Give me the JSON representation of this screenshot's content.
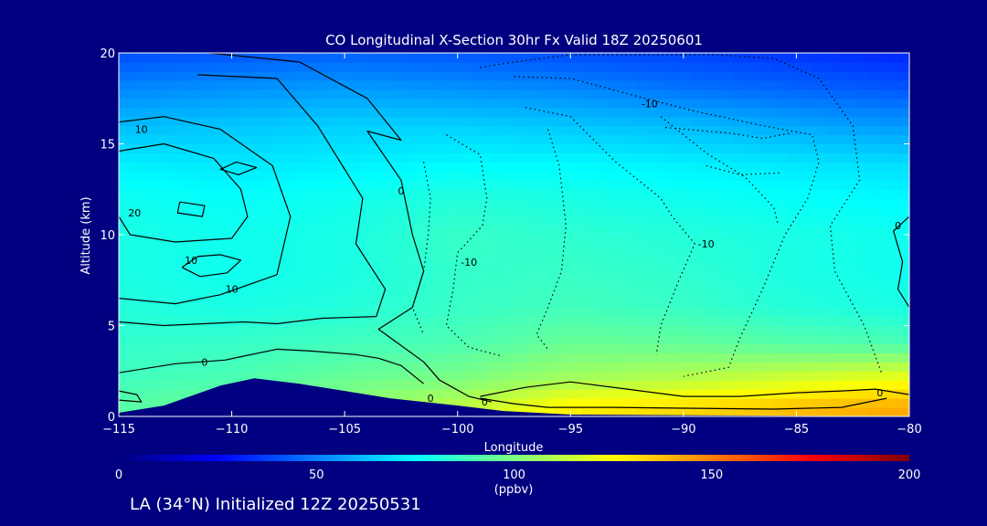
{
  "chart_data": {
    "type": "heatmap",
    "title": "CO Longitudinal X-Section 30hr  Fx Valid 18Z 20250601",
    "xlabel": "Longitude",
    "ylabel": "Altitude (km)",
    "xlim": [
      -115,
      -80
    ],
    "ylim": [
      0,
      20
    ],
    "x_ticks": [
      "−115",
      "−110",
      "−105",
      "−100",
      "−95",
      "−90",
      "−85",
      "−80"
    ],
    "x_tick_values": [
      -115,
      -110,
      -105,
      -100,
      -95,
      -90,
      -85,
      -80
    ],
    "y_ticks": [
      "0",
      "5",
      "10",
      "15",
      "20"
    ],
    "y_tick_values": [
      0,
      5,
      10,
      15,
      20
    ],
    "colorbar": {
      "label": "(ppbv)",
      "ticks": [
        "0",
        "50",
        "100",
        "150",
        "200"
      ],
      "tick_values": [
        0,
        50,
        100,
        150,
        200
      ],
      "range": [
        0,
        200
      ]
    },
    "grid_lon": [
      -115,
      -110,
      -105,
      -100,
      -95,
      -90,
      -85,
      -80
    ],
    "grid_alt": [
      0.5,
      2,
      4,
      6,
      8,
      10,
      12,
      14,
      16,
      18,
      20
    ],
    "values": [
      [
        92,
        98,
        104,
        112,
        128,
        132,
        138,
        142
      ],
      [
        88,
        90,
        96,
        100,
        108,
        112,
        118,
        124
      ],
      [
        85,
        86,
        88,
        90,
        96,
        95,
        92,
        90
      ],
      [
        82,
        80,
        82,
        86,
        88,
        86,
        82,
        80
      ],
      [
        80,
        78,
        80,
        85,
        86,
        84,
        80,
        78
      ],
      [
        80,
        78,
        80,
        86,
        84,
        82,
        80,
        78
      ],
      [
        78,
        76,
        78,
        82,
        80,
        78,
        76,
        74
      ],
      [
        72,
        70,
        72,
        74,
        74,
        72,
        70,
        68
      ],
      [
        62,
        64,
        66,
        66,
        64,
        62,
        58,
        55
      ],
      [
        52,
        54,
        56,
        54,
        52,
        48,
        45,
        42
      ],
      [
        40,
        42,
        44,
        42,
        40,
        38,
        35,
        32
      ]
    ],
    "terrain": {
      "lon": [
        -115,
        -113,
        -110.5,
        -109,
        -107,
        -103,
        -100,
        -98,
        -95,
        -80
      ],
      "alt": [
        0.2,
        0.6,
        1.7,
        2.1,
        1.8,
        1.0,
        0.6,
        0.3,
        0.1,
        0.0
      ]
    },
    "contour_labels": [
      {
        "text": "10",
        "lon": -114,
        "alt": 15.8
      },
      {
        "text": "20",
        "lon": -114.3,
        "alt": 11.2
      },
      {
        "text": "10",
        "lon": -111.8,
        "alt": 8.6
      },
      {
        "text": "10",
        "lon": -110,
        "alt": 7.0
      },
      {
        "text": "0",
        "lon": -111.2,
        "alt": 3.0
      },
      {
        "text": "0",
        "lon": -102.5,
        "alt": 12.4
      },
      {
        "text": "-10",
        "lon": -99.5,
        "alt": 8.5
      },
      {
        "text": "-10",
        "lon": -91.5,
        "alt": 17.2
      },
      {
        "text": "-10",
        "lon": -89,
        "alt": 9.5
      },
      {
        "text": "0",
        "lon": -80.5,
        "alt": 10.5
      },
      {
        "text": "0",
        "lon": -101.2,
        "alt": 1.0
      },
      {
        "text": "0",
        "lon": -98.8,
        "alt": 0.8
      },
      {
        "text": "0",
        "lon": -81.3,
        "alt": 1.3
      }
    ],
    "contour_lines": [
      {
        "style": "solid",
        "pts": [
          [
            -111,
            20
          ],
          [
            -107,
            19.5
          ],
          [
            -104,
            17.5
          ],
          [
            -102.5,
            15.2
          ],
          [
            -104,
            15.7
          ],
          [
            -102.5,
            13
          ],
          [
            -102,
            10
          ],
          [
            -101.5,
            8
          ],
          [
            -102,
            6
          ],
          [
            -103.5,
            4.8
          ],
          [
            -101.5,
            3
          ],
          [
            -100.8,
            2
          ],
          [
            -99.5,
            1.1
          ],
          [
            -98.5,
            0.8
          ]
        ]
      },
      {
        "style": "solid",
        "pts": [
          [
            -111.5,
            18.8
          ],
          [
            -108,
            18.6
          ],
          [
            -106.2,
            16
          ],
          [
            -104.2,
            12
          ],
          [
            -104.5,
            9.5
          ],
          [
            -103.2,
            7
          ],
          [
            -103.6,
            5.5
          ],
          [
            -106,
            5.4
          ],
          [
            -108,
            5.1
          ],
          [
            -109.5,
            5.2
          ],
          [
            -113,
            5
          ],
          [
            -115,
            5.2
          ]
        ]
      },
      {
        "style": "solid",
        "pts": [
          [
            -115,
            16.2
          ],
          [
            -113,
            16.5
          ],
          [
            -110.5,
            15.8
          ],
          [
            -108.2,
            13.8
          ],
          [
            -107.4,
            11
          ],
          [
            -108,
            7.8
          ],
          [
            -110.5,
            6.7
          ],
          [
            -112.5,
            6.2
          ],
          [
            -115,
            6.5
          ]
        ]
      },
      {
        "style": "solid",
        "pts": [
          [
            -115,
            14.6
          ],
          [
            -113,
            15
          ],
          [
            -110.8,
            14.2
          ],
          [
            -109.6,
            12.5
          ],
          [
            -109.3,
            11
          ],
          [
            -110,
            9.8
          ],
          [
            -112.5,
            9.6
          ],
          [
            -114.5,
            10
          ],
          [
            -115,
            11
          ]
        ]
      },
      {
        "style": "solid",
        "pts": [
          [
            -109.8,
            14
          ],
          [
            -108.9,
            13.7
          ],
          [
            -109.7,
            13.3
          ],
          [
            -110.5,
            13.6
          ],
          [
            -109.8,
            14
          ]
        ]
      },
      {
        "style": "solid",
        "pts": [
          [
            -112.3,
            11.8
          ],
          [
            -111.2,
            11.6
          ],
          [
            -111.3,
            11
          ],
          [
            -112.4,
            11.2
          ],
          [
            -112.3,
            11.8
          ]
        ]
      },
      {
        "style": "solid",
        "pts": [
          [
            -112.2,
            8.2
          ],
          [
            -111.5,
            8.8
          ],
          [
            -110.5,
            8.9
          ],
          [
            -109.6,
            8.6
          ],
          [
            -110.2,
            7.9
          ],
          [
            -111.4,
            7.7
          ],
          [
            -112.2,
            8.2
          ]
        ]
      },
      {
        "style": "solid",
        "pts": [
          [
            -115,
            2.4
          ],
          [
            -112.5,
            2.9
          ],
          [
            -110.3,
            3.1
          ],
          [
            -108,
            3.7
          ],
          [
            -106.5,
            3.6
          ],
          [
            -104.5,
            3.4
          ],
          [
            -103.5,
            3.2
          ],
          [
            -102.5,
            2.8
          ],
          [
            -101.5,
            1.8
          ]
        ]
      },
      {
        "style": "solid",
        "pts": [
          [
            -115,
            1.4
          ],
          [
            -114.2,
            1.2
          ],
          [
            -114,
            0.8
          ],
          [
            -115,
            0.9
          ]
        ]
      },
      {
        "style": "solid",
        "pts": [
          [
            -99,
            1.1
          ],
          [
            -97,
            1.6
          ],
          [
            -95,
            1.9
          ],
          [
            -92.5,
            1.5
          ],
          [
            -90,
            1.1
          ],
          [
            -87.5,
            1.1
          ],
          [
            -85,
            1.3
          ],
          [
            -83,
            1.4
          ],
          [
            -81.5,
            1.5
          ],
          [
            -80,
            1.2
          ]
        ]
      },
      {
        "style": "solid",
        "pts": [
          [
            -99,
            1.0
          ],
          [
            -97.5,
            0.7
          ],
          [
            -96,
            0.5
          ],
          [
            -93,
            0.5
          ],
          [
            -90,
            0.45
          ],
          [
            -86,
            0.4
          ],
          [
            -83,
            0.5
          ],
          [
            -81,
            1.0
          ]
        ]
      },
      {
        "style": "solid",
        "pts": [
          [
            -80,
            11
          ],
          [
            -80.7,
            10.2
          ],
          [
            -80.3,
            8.5
          ],
          [
            -80.5,
            7
          ],
          [
            -80,
            6
          ]
        ]
      },
      {
        "style": "dotted",
        "pts": [
          [
            -99,
            19.2
          ],
          [
            -97.5,
            19.5
          ],
          [
            -95,
            19.9
          ],
          [
            -92,
            19.9
          ],
          [
            -88.5,
            19.9
          ],
          [
            -86,
            19.7
          ],
          [
            -84,
            18.6
          ],
          [
            -82.5,
            16
          ],
          [
            -82.2,
            13
          ],
          [
            -83.5,
            10.5
          ],
          [
            -83.3,
            8
          ],
          [
            -82,
            5
          ],
          [
            -81.2,
            2.3
          ]
        ]
      },
      {
        "style": "dotted",
        "pts": [
          [
            -97.5,
            18.7
          ],
          [
            -95,
            18.6
          ],
          [
            -92,
            17.6
          ],
          [
            -89.5,
            16.8
          ],
          [
            -86.5,
            16
          ],
          [
            -84.3,
            15.5
          ],
          [
            -84,
            14
          ],
          [
            -84.5,
            12
          ],
          [
            -85.5,
            10
          ],
          [
            -86.5,
            7
          ],
          [
            -87.5,
            4.3
          ],
          [
            -88,
            2.7
          ],
          [
            -90,
            2.2
          ]
        ]
      },
      {
        "style": "dotted",
        "pts": [
          [
            -100.5,
            15.5
          ],
          [
            -99,
            14.4
          ],
          [
            -98.7,
            12
          ],
          [
            -98.9,
            10.5
          ],
          [
            -100,
            9
          ],
          [
            -100.2,
            7
          ],
          [
            -100.5,
            5
          ],
          [
            -99.5,
            3.8
          ],
          [
            -98,
            3.3
          ]
        ]
      },
      {
        "style": "dotted",
        "pts": [
          [
            -101.5,
            14
          ],
          [
            -101.2,
            12
          ],
          [
            -101.3,
            10
          ],
          [
            -101.5,
            8
          ],
          [
            -102,
            6
          ],
          [
            -101.5,
            4.5
          ]
        ]
      },
      {
        "style": "dotted",
        "pts": [
          [
            -97,
            17
          ],
          [
            -95,
            16.5
          ],
          [
            -93,
            14
          ],
          [
            -91,
            12
          ],
          [
            -90.5,
            11
          ],
          [
            -89.5,
            9.5
          ],
          [
            -90.2,
            7.5
          ],
          [
            -91,
            5
          ],
          [
            -91.2,
            3.4
          ]
        ]
      },
      {
        "style": "dotted",
        "pts": [
          [
            -96,
            15.8
          ],
          [
            -95.5,
            13.8
          ],
          [
            -95.2,
            10.5
          ],
          [
            -95.4,
            8
          ],
          [
            -96,
            6
          ],
          [
            -96.5,
            4.5
          ],
          [
            -96,
            3.7
          ]
        ]
      },
      {
        "style": "dotted",
        "pts": [
          [
            -91,
            16.5
          ],
          [
            -89,
            14.5
          ],
          [
            -87.3,
            13.2
          ],
          [
            -86,
            11.5
          ],
          [
            -85.8,
            10.5
          ]
        ]
      },
      {
        "style": "dotted",
        "pts": [
          [
            -90.8,
            15.9
          ],
          [
            -88,
            15.6
          ],
          [
            -86.5,
            15.3
          ],
          [
            -85.2,
            15.6
          ]
        ]
      },
      {
        "style": "dotted",
        "pts": [
          [
            -89,
            13.8
          ],
          [
            -87.5,
            13.3
          ],
          [
            -85.7,
            13.4
          ]
        ]
      }
    ]
  },
  "footer": "LA (34°N) Initialized 12Z 20250531"
}
